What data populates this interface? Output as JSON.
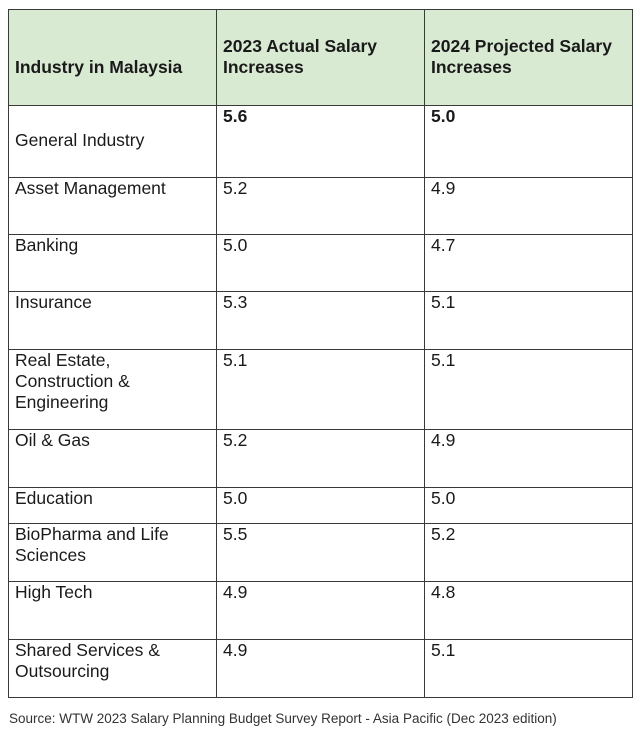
{
  "table": {
    "headers": [
      "Industry in Malaysia",
      "2023 Actual Salary Increases",
      "2024 Projected Salary Increases"
    ],
    "rows": [
      {
        "industry": "General Industry",
        "actual_2023": "5.6",
        "projected_2024": "5.0",
        "bold": true
      },
      {
        "industry": "Asset Management",
        "actual_2023": "5.2",
        "projected_2024": "4.9",
        "bold": false
      },
      {
        "industry": "Banking",
        "actual_2023": "5.0",
        "projected_2024": "4.7",
        "bold": false
      },
      {
        "industry": "Insurance",
        "actual_2023": "5.3",
        "projected_2024": "5.1",
        "bold": false
      },
      {
        "industry": "Real Estate, Construction & Engineering",
        "actual_2023": "5.1",
        "projected_2024": "5.1",
        "bold": false
      },
      {
        "industry": "Oil & Gas",
        "actual_2023": "5.2",
        "projected_2024": "4.9",
        "bold": false
      },
      {
        "industry": "Education",
        "actual_2023": "5.0",
        "projected_2024": "5.0",
        "bold": false
      },
      {
        "industry": "BioPharma and Life Sciences",
        "actual_2023": "5.5",
        "projected_2024": "5.2",
        "bold": false
      },
      {
        "industry": "High Tech",
        "actual_2023": "4.9",
        "projected_2024": "4.8",
        "bold": false
      },
      {
        "industry": "Shared Services & Outsourcing",
        "actual_2023": "4.9",
        "projected_2024": "5.1",
        "bold": false
      }
    ]
  },
  "source": "Source: WTW 2023 Salary Planning Budget Survey Report - Asia Pacific (Dec 2023 edition)",
  "colors": {
    "header_background": "#d9ead3",
    "border": "#3a3a3a"
  }
}
